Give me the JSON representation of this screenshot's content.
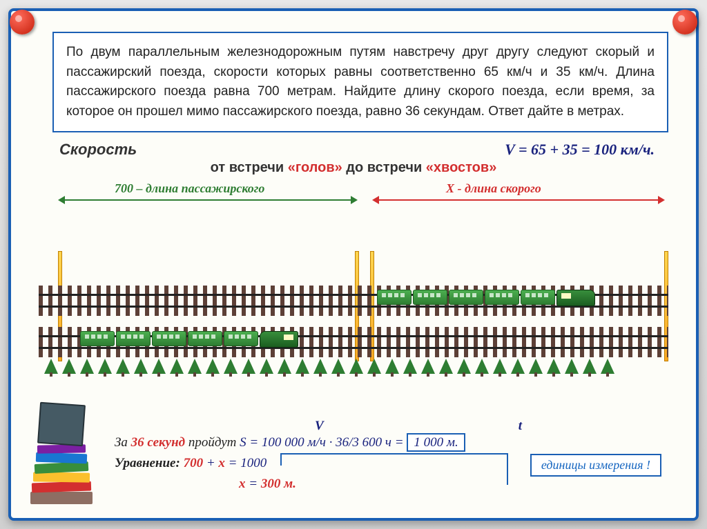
{
  "problem_text": "По двум параллельным железнодорожным путям навстречу друг другу следуют скорый и пассажирский поезда, скорости которых равны соответственно 65 км/ч и 35 км/ч. Длина пассажирского поезда равна 700 метрам. Найдите длину скорого поезда, если время, за которое он прошел мимо пассажирского поезда, равно 36 секундам. Ответ дайте в метрах.",
  "speed_label": "Скорость",
  "speed_equation": "V = 65 + 35 =  100 км/ч.",
  "subtitle_parts": {
    "a": "от встречи ",
    "b": "«голов»",
    "c": " до встречи ",
    "d": "«хвостов»"
  },
  "arrow_labels": {
    "green": "700 – длина пассажирского",
    "red": "X - длина скорого"
  },
  "vt": {
    "v": "V",
    "t": "t"
  },
  "calc1": {
    "a": "За ",
    "b": "36",
    "c": " секунд",
    "d": " пройдут ",
    "e": "S = 100 000 м/ч · ",
    "f": " 36/3 600 ч = ",
    "g": "1 000 м."
  },
  "calc2": {
    "a": "Уравнение: ",
    "b": "700",
    "c": "  +  ",
    "x": "x",
    "d": "  =  ",
    "e": "1000"
  },
  "calc3": {
    "x": "x",
    "a": "  =  ",
    "b": "300 м."
  },
  "units_label": "единицы  измерения !",
  "diagram": {
    "train_top_cars": 5,
    "train_bot_cars": 5,
    "tree_count": 32,
    "track_color": "#5d4037",
    "train_color": "#2e7d32",
    "pole_color": "#f9a825"
  }
}
